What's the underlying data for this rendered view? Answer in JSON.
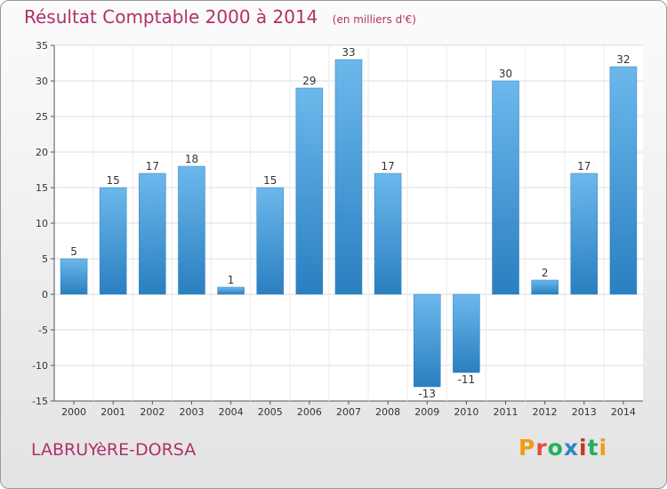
{
  "header": {
    "title": "Résultat Comptable 2000 à 2014",
    "unit": "(en milliers d'€)"
  },
  "footer": {
    "town": "LABRUYèRE-DORSA",
    "brand": "Proxiti",
    "brand_colors": [
      "#f39c12",
      "#e74c3c",
      "#27ae60",
      "#2e86c1",
      "#c0392b",
      "#27ae60",
      "#f39c12"
    ]
  },
  "colors": {
    "title": "#b0306a",
    "bar_light": "#6cb8ec",
    "bar_dark": "#2a7fc0"
  },
  "chart_data": {
    "type": "bar",
    "title": "Résultat Comptable 2000 à 2014",
    "xlabel": "",
    "ylabel": "",
    "categories": [
      "2000",
      "2001",
      "2002",
      "2003",
      "2004",
      "2005",
      "2006",
      "2007",
      "2008",
      "2009",
      "2010",
      "2011",
      "2012",
      "2013",
      "2014"
    ],
    "values": [
      5,
      15,
      17,
      18,
      1,
      15,
      29,
      33,
      17,
      -13,
      -11,
      30,
      2,
      17,
      32
    ],
    "value_labels": [
      "5",
      "15",
      "17",
      "18",
      "1",
      "15",
      "29",
      "33",
      "17",
      "-13",
      "-11",
      "30",
      "2",
      "17",
      "32"
    ],
    "yticks": [
      35,
      30,
      25,
      20,
      15,
      10,
      5,
      0,
      -5,
      -10,
      -15
    ],
    "ytick_labels": [
      "35",
      "30",
      "25",
      "20",
      "15",
      "10",
      "5",
      "0",
      "-5",
      "-10",
      "-15"
    ],
    "ylim": [
      -15,
      35
    ],
    "grid": true,
    "legend": "none"
  }
}
